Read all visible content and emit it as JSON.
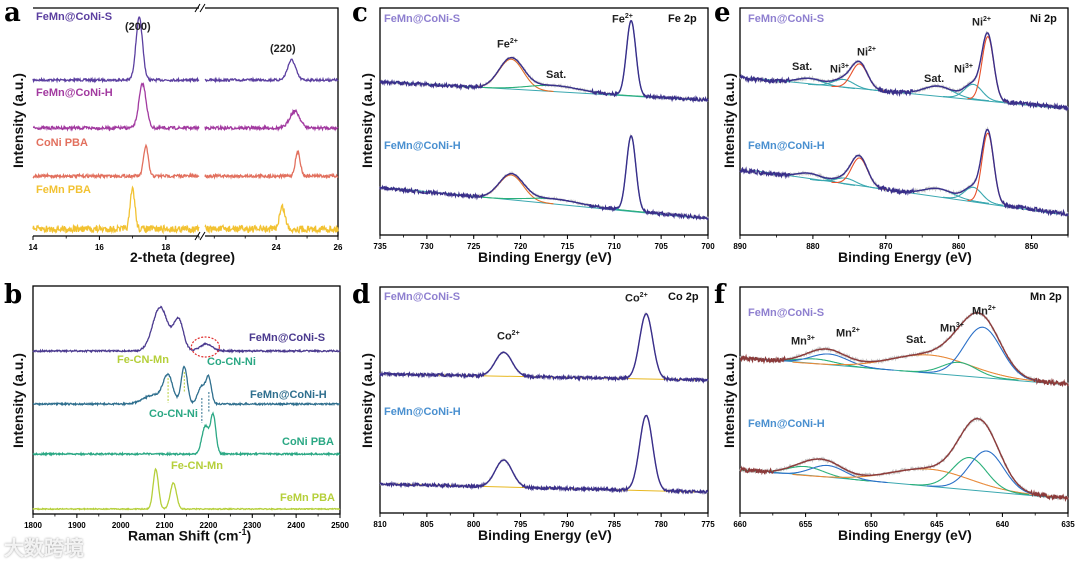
{
  "chart_data": [
    {
      "panel": "a",
      "type": "line",
      "title": "",
      "xlabel": "2-theta (degree)",
      "ylabel": "Intensity (a.u.)",
      "xlim": [
        14,
        26
      ],
      "axis_break": [
        19,
        21.7
      ],
      "xticks": [
        14,
        16,
        18,
        24,
        26
      ],
      "series": [
        {
          "name": "FeMn@CoNi-S",
          "color": "#5b3fa0",
          "peaks": [
            {
              "center": 17.2,
              "amplitude": 62,
              "width": 0.1
            },
            {
              "center": 24.5,
              "amplitude": 20,
              "width": 0.13
            }
          ]
        },
        {
          "name": "FeMn@CoNi-H",
          "color": "#a23aa0",
          "peaks": [
            {
              "center": 17.3,
              "amplitude": 44,
              "width": 0.11
            },
            {
              "center": 24.6,
              "amplitude": 17,
              "width": 0.16
            }
          ]
        },
        {
          "name": "CoNi PBA",
          "color": "#e2705e",
          "peaks": [
            {
              "center": 17.4,
              "amplitude": 30,
              "width": 0.07
            },
            {
              "center": 24.7,
              "amplitude": 24,
              "width": 0.08
            }
          ]
        },
        {
          "name": "FeMn PBA",
          "color": "#f2c232",
          "peaks": [
            {
              "center": 17.0,
              "amplitude": 40,
              "width": 0.07
            },
            {
              "center": 24.2,
              "amplitude": 22,
              "width": 0.09
            }
          ]
        }
      ],
      "annotations": [
        "(200)",
        "(220)"
      ]
    },
    {
      "panel": "b",
      "type": "line",
      "title": "",
      "xlabel": "Raman Shift (cm",
      "xlabel_sup": "-1",
      "xlabel_end": ")",
      "ylabel": "Intensity (a.u.)",
      "xlim": [
        1800,
        2500
      ],
      "xticks": [
        1800,
        1900,
        2000,
        2100,
        2200,
        2300,
        2400,
        2500
      ],
      "series": [
        {
          "name": "FeMn@CoNi-S",
          "color": "#4b3a8f",
          "peaks": [
            {
              "center": 2090,
              "amplitude": 44,
              "width": 17
            },
            {
              "center": 2132,
              "amplitude": 31,
              "width": 11
            },
            {
              "center": 2195,
              "amplitude": 7,
              "width": 14
            }
          ]
        },
        {
          "name": "FeMn@CoNi-H",
          "color": "#2f6f8e",
          "peaks": [
            {
              "center": 2075,
              "amplitude": 9,
              "width": 22
            },
            {
              "center": 2108,
              "amplitude": 27,
              "width": 11
            },
            {
              "center": 2145,
              "amplitude": 37,
              "width": 7
            },
            {
              "center": 2185,
              "amplitude": 18,
              "width": 9
            },
            {
              "center": 2201,
              "amplitude": 24,
              "width": 6
            }
          ]
        },
        {
          "name": "CoNi PBA",
          "color": "#2ba884",
          "peaks": [
            {
              "center": 2193,
              "amplitude": 28,
              "width": 8
            },
            {
              "center": 2211,
              "amplitude": 38,
              "width": 6
            }
          ]
        },
        {
          "name": "FeMn PBA",
          "color": "#b5cf3a",
          "peaks": [
            {
              "center": 2080,
              "amplitude": 40,
              "width": 6
            },
            {
              "center": 2120,
              "amplitude": 26,
              "width": 7
            }
          ]
        }
      ],
      "annotations": [
        "Fe-CN-Mn",
        "Co-CN-Ni",
        "Co-CN-Ni",
        "Fe-CN-Mn"
      ]
    },
    {
      "panel": "c",
      "type": "line",
      "title": "Fe 2p",
      "xlabel": "Binding Energy (eV)",
      "ylabel": "Intensity (a.u.)",
      "xlim": [
        735,
        700
      ],
      "xticks": [
        735,
        730,
        725,
        720,
        715,
        710,
        705,
        700
      ],
      "series": [
        {
          "name": "FeMn@CoNi-S",
          "color": "#3a2f8a",
          "label_color": "#8f80d0",
          "peaks": [
            {
              "center": 721,
              "amplitude": 30,
              "width": 1.3,
              "color": "#e0702a"
            },
            {
              "center": 716.5,
              "amplitude": 6,
              "width": 2.8,
              "color": "#2bb07a"
            },
            {
              "center": 708.2,
              "amplitude": 75,
              "width": 0.5,
              "color": "#2b8ad0"
            }
          ]
        },
        {
          "name": "FeMn@CoNi-H",
          "color": "#3a2f8a",
          "label_color": "#4a90d0",
          "peaks": [
            {
              "center": 721,
              "amplitude": 25,
              "width": 1.3,
              "color": "#e0702a"
            },
            {
              "center": 716.5,
              "amplitude": 5,
              "width": 2.8,
              "color": "#2bb07a"
            },
            {
              "center": 708.2,
              "amplitude": 75,
              "width": 0.5,
              "color": "#2b8ad0"
            }
          ]
        }
      ],
      "annotations": [
        {
          "base": "Fe",
          "sup": "2+"
        },
        {
          "base": "Sat.",
          "sup": ""
        },
        {
          "base": "Fe",
          "sup": "2+"
        }
      ]
    },
    {
      "panel": "d",
      "type": "line",
      "title": "Co 2p",
      "xlabel": "Binding Energy (eV)",
      "ylabel": "Intensity (a.u.)",
      "xlim": [
        810,
        775
      ],
      "xticks": [
        810,
        805,
        800,
        795,
        790,
        785,
        780,
        775
      ],
      "series": [
        {
          "name": "FeMn@CoNi-S",
          "color": "#3a2f8a",
          "label_color": "#8f80d0",
          "peaks": [
            {
              "center": 796.8,
              "amplitude": 24,
              "width": 0.9,
              "color": "#9a90d8"
            },
            {
              "center": 781.6,
              "amplitude": 65,
              "width": 0.7,
              "color": "#9a90d8"
            }
          ]
        },
        {
          "name": "FeMn@CoNi-H",
          "color": "#3a2f8a",
          "label_color": "#4a90d0",
          "peaks": [
            {
              "center": 796.8,
              "amplitude": 27,
              "width": 0.9,
              "color": "#9a90d8"
            },
            {
              "center": 781.6,
              "amplitude": 75,
              "width": 0.7,
              "color": "#9a90d8"
            }
          ]
        }
      ],
      "annotations": [
        {
          "base": "Co",
          "sup": "2+"
        },
        {
          "base": "Co",
          "sup": "2+"
        }
      ]
    },
    {
      "panel": "e",
      "type": "line",
      "title": "Ni 2p",
      "xlabel": "Binding Energy (eV)",
      "ylabel": "Intensity (a.u.)",
      "xlim": [
        890,
        845
      ],
      "xticks": [
        890,
        880,
        870,
        860,
        850
      ],
      "series": [
        {
          "name": "FeMn@CoNi-S",
          "color": "#3a2f8a",
          "label_color": "#8f80d0",
          "peaks": [
            {
              "center": 880.5,
              "amplitude": 6,
              "width": 1.8,
              "color": "#3aa8b0"
            },
            {
              "center": 875.8,
              "amplitude": 8,
              "width": 1.4,
              "color": "#3aa8b0"
            },
            {
              "center": 873.6,
              "amplitude": 25,
              "width": 1.1,
              "color": "#e8502a"
            },
            {
              "center": 862.8,
              "amplitude": 10,
              "width": 2.0,
              "color": "#3aa8b0"
            },
            {
              "center": 858,
              "amplitude": 15,
              "width": 1.2,
              "color": "#3aa8b0"
            },
            {
              "center": 856,
              "amplitude": 64,
              "width": 0.8,
              "color": "#e8502a"
            }
          ]
        },
        {
          "name": "FeMn@CoNi-H",
          "color": "#3a2f8a",
          "label_color": "#4a90d0",
          "peaks": [
            {
              "center": 880.5,
              "amplitude": 6,
              "width": 1.8,
              "color": "#3aa8b0"
            },
            {
              "center": 875.5,
              "amplitude": 6,
              "width": 1.4,
              "color": "#3aa8b0"
            },
            {
              "center": 873.6,
              "amplitude": 28,
              "width": 1.1,
              "color": "#e8502a"
            },
            {
              "center": 862.8,
              "amplitude": 8,
              "width": 2.0,
              "color": "#3aa8b0"
            },
            {
              "center": 858,
              "amplitude": 14,
              "width": 1.2,
              "color": "#3aa8b0"
            },
            {
              "center": 856,
              "amplitude": 70,
              "width": 0.8,
              "color": "#e8502a"
            }
          ]
        }
      ],
      "annotations": [
        {
          "base": "Sat.",
          "sup": ""
        },
        {
          "base": "Ni",
          "sup": "3+"
        },
        {
          "base": "Ni",
          "sup": "2+"
        },
        {
          "base": "Sat.",
          "sup": ""
        },
        {
          "base": "Ni",
          "sup": "3+"
        },
        {
          "base": "Ni",
          "sup": "2+"
        }
      ]
    },
    {
      "panel": "f",
      "type": "line",
      "title": "Mn 2p",
      "xlabel": "Binding Energy (eV)",
      "ylabel": "Intensity (a.u.)",
      "xlim": [
        660,
        635
      ],
      "xticks": [
        660,
        655,
        650,
        645,
        640,
        635
      ],
      "series": [
        {
          "name": "FeMn@CoNi-S",
          "color": "#8b3a3a",
          "label_color": "#8f80d0",
          "peaks": [
            {
              "center": 654.2,
              "amplitude": 5,
              "width": 1.5,
              "color": "#2bb07a"
            },
            {
              "center": 653.2,
              "amplitude": 11,
              "width": 1.4,
              "color": "#2b70c8"
            },
            {
              "center": 645.5,
              "amplitude": 18,
              "width": 3.0,
              "color": "#e88a3a"
            },
            {
              "center": 643.3,
              "amplitude": 13,
              "width": 1.3,
              "color": "#2bb07a"
            },
            {
              "center": 641.5,
              "amplitude": 50,
              "width": 1.4,
              "color": "#2b70c8"
            }
          ]
        },
        {
          "name": "FeMn@CoNi-H",
          "color": "#8b3a3a",
          "label_color": "#4a90d0",
          "peaks": [
            {
              "center": 655,
              "amplitude": 9,
              "width": 1.4,
              "color": "#2bb07a"
            },
            {
              "center": 653.3,
              "amplitude": 12,
              "width": 1.3,
              "color": "#2b70c8"
            },
            {
              "center": 645.5,
              "amplitude": 17,
              "width": 3.0,
              "color": "#e88a3a"
            },
            {
              "center": 642.5,
              "amplitude": 32,
              "width": 1.3,
              "color": "#2bb07a"
            },
            {
              "center": 641.2,
              "amplitude": 40,
              "width": 1.3,
              "color": "#2b70c8"
            }
          ]
        }
      ],
      "annotations": [
        {
          "base": "Mn",
          "sup": "3+"
        },
        {
          "base": "Mn",
          "sup": "2+"
        },
        {
          "base": "Sat.",
          "sup": ""
        },
        {
          "base": "Mn",
          "sup": "3+"
        },
        {
          "base": "Mn",
          "sup": "2+"
        }
      ]
    }
  ],
  "panel_letters": [
    "a",
    "b",
    "c",
    "d",
    "e",
    "f"
  ],
  "watermark": "大数跨境"
}
